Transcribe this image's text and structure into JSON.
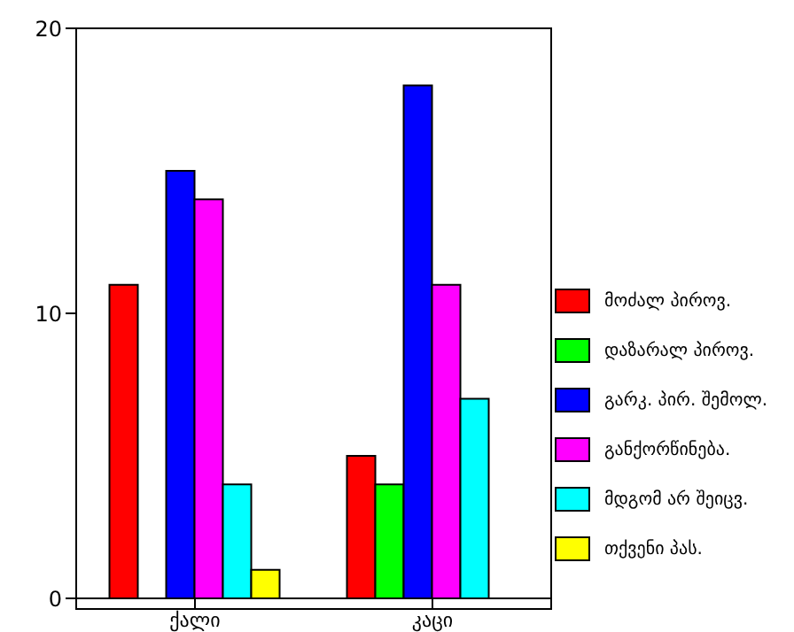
{
  "chart_data": {
    "type": "bar",
    "categories": [
      "ქალი",
      "კაცი"
    ],
    "series": [
      {
        "name": "მოძალ პიროვ.",
        "color": "#ff0000",
        "values": [
          11,
          5
        ]
      },
      {
        "name": "დაზარალ პიროვ.",
        "color": "#00ff00",
        "values": [
          0,
          4
        ]
      },
      {
        "name": "გარკ. პირ. შემოლ.",
        "color": "#0000ff",
        "values": [
          15,
          18
        ]
      },
      {
        "name": "განქორწინება.",
        "color": "#ff00ff",
        "values": [
          14,
          11
        ]
      },
      {
        "name": "მდგომ არ შეიცვ.",
        "color": "#00ffff",
        "values": [
          4,
          7
        ]
      },
      {
        "name": "თქვენი პას.",
        "color": "#ffff00",
        "values": [
          1,
          0
        ]
      }
    ],
    "ylim": [
      0,
      20
    ],
    "yticks": [
      0,
      10,
      20
    ],
    "grid": false,
    "legend": "right"
  }
}
